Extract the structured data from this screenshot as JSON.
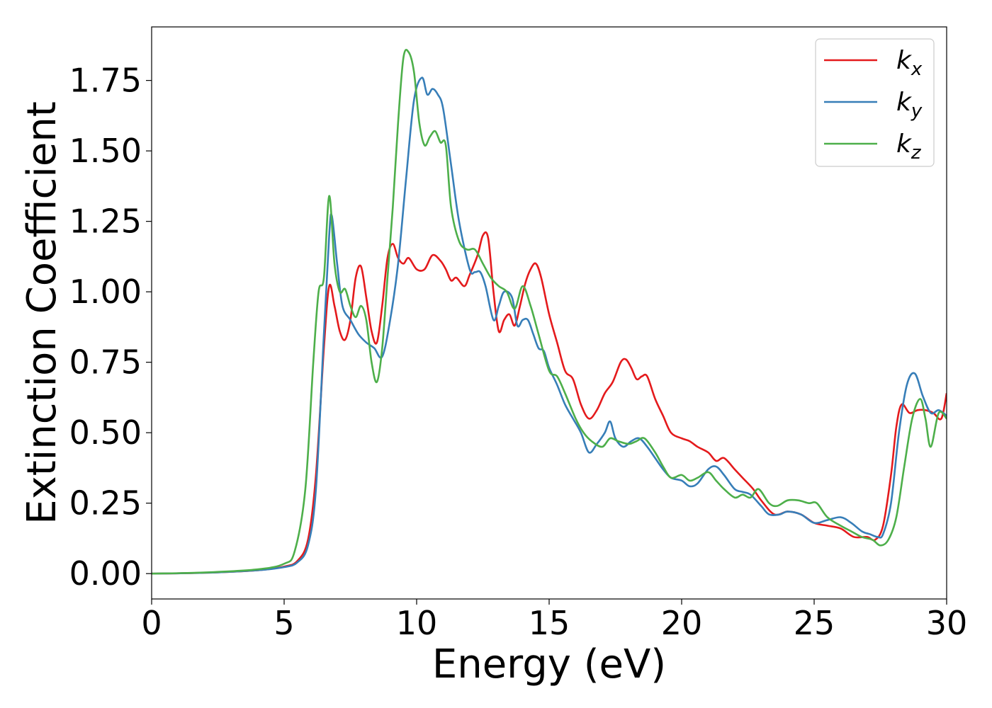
{
  "chart_data": {
    "type": "line",
    "xlabel": "Energy (eV)",
    "ylabel": "Extinction Coefficient",
    "xlim": [
      0,
      30
    ],
    "ylim": [
      -0.09,
      1.94
    ],
    "xticks": [
      0,
      5,
      10,
      15,
      20,
      25,
      30
    ],
    "xtick_labels": [
      "0",
      "5",
      "10",
      "15",
      "20",
      "25",
      "30"
    ],
    "yticks": [
      0,
      0.25,
      0.5,
      0.75,
      1.0,
      1.25,
      1.5,
      1.75
    ],
    "ytick_labels": [
      "0.00",
      "0.25",
      "0.50",
      "0.75",
      "1.00",
      "1.25",
      "1.50",
      "1.75"
    ],
    "grid": false,
    "legend_position": "top-right",
    "series": [
      {
        "name": "k_x",
        "legend_main": "k",
        "legend_sub": "x",
        "color": "#e41a1c",
        "x": [
          0,
          2,
          4,
          5,
          5.5,
          5.9,
          6.2,
          6.5,
          6.7,
          6.9,
          7.1,
          7.3,
          7.5,
          7.7,
          7.9,
          8.1,
          8.3,
          8.5,
          8.7,
          8.9,
          9.1,
          9.3,
          9.5,
          9.7,
          10.0,
          10.3,
          10.6,
          10.9,
          11.1,
          11.3,
          11.5,
          11.8,
          12.0,
          12.3,
          12.5,
          12.7,
          12.9,
          13.1,
          13.3,
          13.5,
          13.7,
          13.9,
          14.1,
          14.3,
          14.5,
          14.7,
          15.0,
          15.3,
          15.6,
          15.9,
          16.2,
          16.5,
          16.8,
          17.1,
          17.4,
          17.7,
          17.9,
          18.1,
          18.3,
          18.5,
          18.7,
          19.0,
          19.3,
          19.6,
          20.0,
          20.3,
          20.6,
          21.0,
          21.3,
          21.6,
          22.0,
          22.3,
          22.7,
          23.0,
          23.5,
          24.0,
          24.5,
          25.0,
          25.5,
          26.0,
          26.5,
          27.0,
          27.3,
          27.6,
          27.9,
          28.1,
          28.3,
          28.6,
          28.9,
          29.2,
          29.5,
          29.8,
          30.0
        ],
        "y": [
          0,
          0.003,
          0.012,
          0.025,
          0.045,
          0.12,
          0.35,
          0.8,
          1.02,
          0.95,
          0.86,
          0.83,
          0.9,
          1.05,
          1.09,
          0.98,
          0.86,
          0.82,
          0.95,
          1.12,
          1.17,
          1.12,
          1.1,
          1.12,
          1.08,
          1.08,
          1.13,
          1.11,
          1.08,
          1.04,
          1.05,
          1.02,
          1.06,
          1.13,
          1.2,
          1.19,
          1.0,
          0.86,
          0.9,
          0.92,
          0.88,
          0.95,
          1.03,
          1.08,
          1.1,
          1.05,
          0.92,
          0.82,
          0.72,
          0.69,
          0.6,
          0.55,
          0.58,
          0.64,
          0.68,
          0.75,
          0.76,
          0.73,
          0.69,
          0.7,
          0.7,
          0.62,
          0.56,
          0.5,
          0.48,
          0.47,
          0.45,
          0.43,
          0.4,
          0.41,
          0.37,
          0.34,
          0.3,
          0.26,
          0.21,
          0.22,
          0.21,
          0.18,
          0.17,
          0.16,
          0.13,
          0.13,
          0.12,
          0.17,
          0.35,
          0.52,
          0.6,
          0.57,
          0.58,
          0.58,
          0.57,
          0.55,
          0.64
        ]
      },
      {
        "name": "k_y",
        "legend_main": "k",
        "legend_sub": "y",
        "color": "#377eb8",
        "x": [
          0,
          2,
          4,
          5,
          5.5,
          5.9,
          6.2,
          6.5,
          6.7,
          6.8,
          7.0,
          7.2,
          7.5,
          7.8,
          8.1,
          8.4,
          8.7,
          9.0,
          9.3,
          9.6,
          9.9,
          10.2,
          10.4,
          10.6,
          10.8,
          11.0,
          11.3,
          11.6,
          12.0,
          12.2,
          12.4,
          12.6,
          12.9,
          13.1,
          13.3,
          13.6,
          13.8,
          14.0,
          14.2,
          14.4,
          14.6,
          14.8,
          15.0,
          15.3,
          15.6,
          15.9,
          16.2,
          16.5,
          16.8,
          17.1,
          17.3,
          17.5,
          17.8,
          18.1,
          18.4,
          18.7,
          19.0,
          19.3,
          19.6,
          20.0,
          20.3,
          20.6,
          21.0,
          21.3,
          21.6,
          22.0,
          22.3,
          22.6,
          23.0,
          23.3,
          23.7,
          24.0,
          24.5,
          25.0,
          25.5,
          26.0,
          26.4,
          26.8,
          27.1,
          27.4,
          27.6,
          27.9,
          28.2,
          28.5,
          28.8,
          29.1,
          29.4,
          29.7,
          30.0
        ],
        "y": [
          0,
          0.003,
          0.012,
          0.023,
          0.04,
          0.1,
          0.3,
          0.85,
          1.2,
          1.27,
          1.1,
          0.95,
          0.9,
          0.85,
          0.82,
          0.8,
          0.77,
          0.9,
          1.1,
          1.4,
          1.68,
          1.76,
          1.7,
          1.72,
          1.7,
          1.65,
          1.45,
          1.25,
          1.08,
          1.07,
          1.07,
          1.02,
          0.9,
          0.95,
          1.0,
          0.98,
          0.88,
          0.9,
          0.9,
          0.85,
          0.8,
          0.79,
          0.73,
          0.67,
          0.6,
          0.55,
          0.5,
          0.43,
          0.46,
          0.5,
          0.54,
          0.48,
          0.45,
          0.47,
          0.48,
          0.45,
          0.41,
          0.37,
          0.34,
          0.33,
          0.31,
          0.32,
          0.37,
          0.38,
          0.35,
          0.3,
          0.29,
          0.28,
          0.24,
          0.21,
          0.21,
          0.22,
          0.21,
          0.18,
          0.19,
          0.2,
          0.18,
          0.15,
          0.14,
          0.13,
          0.14,
          0.25,
          0.5,
          0.67,
          0.71,
          0.63,
          0.57,
          0.58,
          0.56
        ]
      },
      {
        "name": "k_z",
        "legend_main": "k",
        "legend_sub": "z",
        "color": "#4daf4a",
        "x": [
          0,
          2,
          4,
          5,
          5.4,
          5.8,
          6.1,
          6.3,
          6.5,
          6.7,
          6.9,
          7.1,
          7.3,
          7.5,
          7.7,
          7.9,
          8.1,
          8.3,
          8.5,
          8.7,
          8.9,
          9.1,
          9.3,
          9.5,
          9.7,
          9.9,
          10.1,
          10.3,
          10.5,
          10.7,
          10.9,
          11.1,
          11.3,
          11.6,
          11.9,
          12.2,
          12.5,
          12.8,
          13.1,
          13.4,
          13.7,
          14.0,
          14.3,
          14.6,
          15.0,
          15.3,
          15.6,
          16.0,
          16.3,
          16.6,
          17.0,
          17.3,
          17.6,
          18.0,
          18.3,
          18.6,
          19.0,
          19.3,
          19.6,
          20.0,
          20.3,
          20.6,
          21.0,
          21.3,
          21.6,
          22.0,
          22.3,
          22.6,
          22.9,
          23.3,
          23.6,
          24.0,
          24.4,
          24.8,
          25.1,
          25.5,
          26.0,
          26.4,
          26.8,
          27.2,
          27.5,
          27.8,
          28.1,
          28.4,
          28.7,
          29.0,
          29.2,
          29.4,
          29.7,
          30.0
        ],
        "y": [
          0,
          0.004,
          0.015,
          0.035,
          0.08,
          0.3,
          0.75,
          1.0,
          1.05,
          1.34,
          1.1,
          1.0,
          1.01,
          0.95,
          0.91,
          0.95,
          0.9,
          0.75,
          0.68,
          0.8,
          1.05,
          1.3,
          1.6,
          1.83,
          1.85,
          1.78,
          1.6,
          1.52,
          1.55,
          1.57,
          1.53,
          1.52,
          1.3,
          1.18,
          1.15,
          1.15,
          1.1,
          1.05,
          1.02,
          1.0,
          0.94,
          1.02,
          0.95,
          0.85,
          0.72,
          0.7,
          0.64,
          0.55,
          0.5,
          0.47,
          0.45,
          0.48,
          0.47,
          0.46,
          0.47,
          0.48,
          0.43,
          0.38,
          0.34,
          0.35,
          0.33,
          0.34,
          0.36,
          0.33,
          0.3,
          0.27,
          0.28,
          0.27,
          0.3,
          0.25,
          0.24,
          0.26,
          0.26,
          0.25,
          0.25,
          0.2,
          0.17,
          0.15,
          0.13,
          0.12,
          0.1,
          0.12,
          0.2,
          0.38,
          0.55,
          0.62,
          0.55,
          0.45,
          0.57,
          0.55
        ]
      }
    ]
  }
}
